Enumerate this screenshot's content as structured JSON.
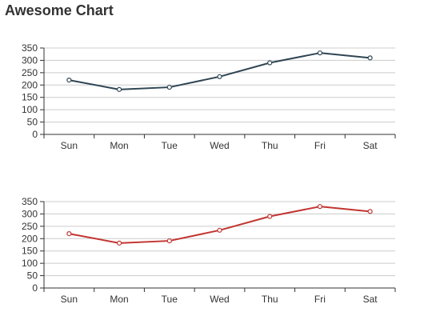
{
  "title": "Awesome Chart",
  "chart_data": [
    {
      "type": "line",
      "categories": [
        "Sun",
        "Mon",
        "Tue",
        "Wed",
        "Thu",
        "Fri",
        "Sat"
      ],
      "series": [
        {
          "values": [
            220,
            182,
            191,
            234,
            290,
            330,
            310
          ],
          "color": "#2f4554"
        }
      ],
      "ylim": [
        0,
        350
      ],
      "yticks": [
        0,
        50,
        100,
        150,
        200,
        250,
        300,
        350
      ],
      "grid": true,
      "markers": "hollow-circle",
      "xlabel": "",
      "ylabel": ""
    },
    {
      "type": "line",
      "categories": [
        "Sun",
        "Mon",
        "Tue",
        "Wed",
        "Thu",
        "Fri",
        "Sat"
      ],
      "series": [
        {
          "values": [
            220,
            182,
            191,
            234,
            290,
            330,
            310
          ],
          "color": "#c23531"
        }
      ],
      "ylim": [
        0,
        350
      ],
      "yticks": [
        0,
        50,
        100,
        150,
        200,
        250,
        300,
        350
      ],
      "grid": true,
      "markers": "hollow-circle",
      "xlabel": "",
      "ylabel": ""
    }
  ]
}
